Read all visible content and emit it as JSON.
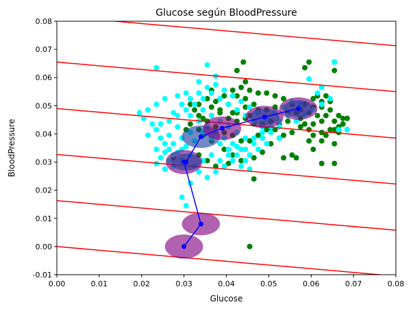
{
  "chart_data": {
    "type": "scatter",
    "title": "Glucose según BloodPressure",
    "xlabel": "Glucose",
    "ylabel": "BloodPressure",
    "xlim": [
      0.0,
      0.08
    ],
    "ylim": [
      -0.01,
      0.08
    ],
    "x_ticks": [
      "0.00",
      "0.01",
      "0.02",
      "0.03",
      "0.04",
      "0.05",
      "0.06",
      "0.07",
      "0.08"
    ],
    "y_ticks": [
      "-0.01",
      "0.00",
      "0.01",
      "0.02",
      "0.03",
      "0.04",
      "0.05",
      "0.06",
      "0.07",
      "0.08"
    ],
    "grid": false,
    "colors": {
      "green_points": "#008000",
      "cyan_points": "#00ffff",
      "lines": "#ff0000",
      "path": "#0000ff",
      "ellipse_purple": "#800080",
      "ellipse_blue": "#1f3f9f"
    },
    "series": [
      {
        "color": "green",
        "points": [
          [
            0.044,
            0.0655
          ],
          [
            0.0595,
            0.0655
          ],
          [
            0.0655,
            0.0655
          ],
          [
            0.0655,
            0.0625
          ],
          [
            0.0585,
            0.0635
          ],
          [
            0.0615,
            0.0535
          ],
          [
            0.0635,
            0.0535
          ],
          [
            0.0645,
            0.0515
          ],
          [
            0.0625,
            0.0495
          ],
          [
            0.0605,
            0.0495
          ],
          [
            0.0595,
            0.0475
          ],
          [
            0.0615,
            0.0465
          ],
          [
            0.0635,
            0.0465
          ],
          [
            0.0665,
            0.0465
          ],
          [
            0.0685,
            0.0455
          ],
          [
            0.0675,
            0.0455
          ],
          [
            0.0655,
            0.0445
          ],
          [
            0.0625,
            0.0445
          ],
          [
            0.0605,
            0.0435
          ],
          [
            0.0585,
            0.0435
          ],
          [
            0.0655,
            0.0415
          ],
          [
            0.0685,
            0.0415
          ],
          [
            0.0665,
            0.0405
          ],
          [
            0.0635,
            0.0395
          ],
          [
            0.0605,
            0.0395
          ],
          [
            0.0595,
            0.0375
          ],
          [
            0.0625,
            0.0375
          ],
          [
            0.0655,
            0.0365
          ],
          [
            0.0605,
            0.0345
          ],
          [
            0.0625,
            0.0295
          ],
          [
            0.0655,
            0.0295
          ],
          [
            0.0535,
            0.0315
          ],
          [
            0.0555,
            0.0325
          ],
          [
            0.0565,
            0.0315
          ],
          [
            0.0515,
            0.0415
          ],
          [
            0.0525,
            0.0435
          ],
          [
            0.0545,
            0.0445
          ],
          [
            0.0565,
            0.0475
          ],
          [
            0.0555,
            0.0505
          ],
          [
            0.0535,
            0.0525
          ],
          [
            0.0515,
            0.0535
          ],
          [
            0.0495,
            0.0545
          ],
          [
            0.0475,
            0.0545
          ],
          [
            0.0455,
            0.0555
          ],
          [
            0.0435,
            0.0565
          ],
          [
            0.0415,
            0.0555
          ],
          [
            0.0395,
            0.0535
          ],
          [
            0.0375,
            0.0515
          ],
          [
            0.0365,
            0.0495
          ],
          [
            0.0385,
            0.0485
          ],
          [
            0.0405,
            0.0505
          ],
          [
            0.0425,
            0.0475
          ],
          [
            0.0445,
            0.0455
          ],
          [
            0.0465,
            0.0435
          ],
          [
            0.0485,
            0.0435
          ],
          [
            0.0505,
            0.0445
          ],
          [
            0.0495,
            0.0415
          ],
          [
            0.0475,
            0.0395
          ],
          [
            0.0455,
            0.0375
          ],
          [
            0.0435,
            0.0375
          ],
          [
            0.0415,
            0.0395
          ],
          [
            0.0395,
            0.0405
          ],
          [
            0.0375,
            0.0425
          ],
          [
            0.0355,
            0.0445
          ],
          [
            0.0345,
            0.0455
          ],
          [
            0.0365,
            0.0465
          ],
          [
            0.0385,
            0.0445
          ],
          [
            0.0325,
            0.0485
          ],
          [
            0.0335,
            0.0465
          ],
          [
            0.0315,
            0.0435
          ],
          [
            0.0305,
            0.0415
          ],
          [
            0.0345,
            0.0395
          ],
          [
            0.0365,
            0.0375
          ],
          [
            0.0395,
            0.0345
          ],
          [
            0.0415,
            0.0325
          ],
          [
            0.0435,
            0.0305
          ],
          [
            0.0465,
            0.0315
          ],
          [
            0.0485,
            0.0335
          ],
          [
            0.0505,
            0.0365
          ],
          [
            0.0525,
            0.0385
          ],
          [
            0.0405,
            0.0295
          ],
          [
            0.0375,
            0.0285
          ],
          [
            0.0355,
            0.0305
          ],
          [
            0.0335,
            0.0325
          ],
          [
            0.0295,
            0.0305
          ],
          [
            0.0275,
            0.0315
          ],
          [
            0.0505,
            0.0415
          ],
          [
            0.0495,
            0.0485
          ],
          [
            0.0465,
            0.0505
          ],
          [
            0.0445,
            0.0525
          ],
          [
            0.0425,
            0.0535
          ],
          [
            0.0445,
            0.0495
          ],
          [
            0.0425,
            0.0445
          ],
          [
            0.0405,
            0.0455
          ],
          [
            0.0385,
            0.0475
          ],
          [
            0.0355,
            0.0425
          ],
          [
            0.0335,
            0.0415
          ],
          [
            0.0455,
            0.0465
          ],
          [
            0.0475,
            0.0485
          ],
          [
            0.0515,
            0.0495
          ],
          [
            0.0545,
            0.0475
          ],
          [
            0.0575,
            0.0455
          ],
          [
            0.0575,
            0.0485
          ],
          [
            0.0585,
            0.0505
          ],
          [
            0.0605,
            0.0525
          ],
          [
            0.0625,
            0.0515
          ],
          [
            0.0645,
            0.0485
          ],
          [
            0.0665,
            0.0425
          ],
          [
            0.0675,
            0.0435
          ],
          [
            0.0645,
            0.0415
          ],
          [
            0.0625,
            0.0405
          ],
          [
            0.0595,
            0.0415
          ],
          [
            0.0575,
            0.0425
          ],
          [
            0.0555,
            0.0405
          ],
          [
            0.0535,
            0.0395
          ],
          [
            0.0455,
            0.0
          ],
          [
            0.0465,
            0.024
          ],
          [
            0.0415,
            0.0475
          ],
          [
            0.0425,
            0.0625
          ],
          [
            0.0445,
            0.0585
          ],
          [
            0.0335,
            0.0505
          ],
          [
            0.0315,
            0.0505
          ],
          [
            0.0355,
            0.0525
          ],
          [
            0.0365,
            0.0555
          ]
        ]
      },
      {
        "color": "cyan",
        "points": [
          [
            0.0235,
            0.0635
          ],
          [
            0.0355,
            0.0645
          ],
          [
            0.0375,
            0.0605
          ],
          [
            0.0335,
            0.0585
          ],
          [
            0.0305,
            0.0545
          ],
          [
            0.0285,
            0.0535
          ],
          [
            0.0255,
            0.0525
          ],
          [
            0.0235,
            0.0505
          ],
          [
            0.0215,
            0.0485
          ],
          [
            0.0195,
            0.0475
          ],
          [
            0.0205,
            0.0455
          ],
          [
            0.0225,
            0.0435
          ],
          [
            0.0235,
            0.0415
          ],
          [
            0.0215,
            0.0395
          ],
          [
            0.0245,
            0.0385
          ],
          [
            0.0255,
            0.0365
          ],
          [
            0.0265,
            0.0345
          ],
          [
            0.0245,
            0.0315
          ],
          [
            0.0235,
            0.0295
          ],
          [
            0.0255,
            0.0275
          ],
          [
            0.0275,
            0.0285
          ],
          [
            0.0295,
            0.0305
          ],
          [
            0.0315,
            0.0325
          ],
          [
            0.0295,
            0.0345
          ],
          [
            0.0275,
            0.0365
          ],
          [
            0.0295,
            0.0385
          ],
          [
            0.0315,
            0.0405
          ],
          [
            0.0285,
            0.0425
          ],
          [
            0.0265,
            0.0445
          ],
          [
            0.0285,
            0.0465
          ],
          [
            0.0305,
            0.0485
          ],
          [
            0.0325,
            0.0505
          ],
          [
            0.0345,
            0.0525
          ],
          [
            0.0365,
            0.0545
          ],
          [
            0.0385,
            0.0525
          ],
          [
            0.0405,
            0.0505
          ],
          [
            0.0425,
            0.0485
          ],
          [
            0.0445,
            0.0465
          ],
          [
            0.0465,
            0.0445
          ],
          [
            0.0485,
            0.0425
          ],
          [
            0.0505,
            0.0405
          ],
          [
            0.0525,
            0.0385
          ],
          [
            0.0495,
            0.0365
          ],
          [
            0.0475,
            0.0345
          ],
          [
            0.0455,
            0.0325
          ],
          [
            0.0435,
            0.0345
          ],
          [
            0.0415,
            0.0365
          ],
          [
            0.0395,
            0.0385
          ],
          [
            0.0375,
            0.0405
          ],
          [
            0.0355,
            0.0425
          ],
          [
            0.0335,
            0.0445
          ],
          [
            0.0315,
            0.0465
          ],
          [
            0.0345,
            0.0485
          ],
          [
            0.0365,
            0.0465
          ],
          [
            0.0385,
            0.0445
          ],
          [
            0.0405,
            0.0425
          ],
          [
            0.0425,
            0.0405
          ],
          [
            0.0445,
            0.0385
          ],
          [
            0.0465,
            0.0365
          ],
          [
            0.0485,
            0.0385
          ],
          [
            0.0505,
            0.0425
          ],
          [
            0.0525,
            0.0445
          ],
          [
            0.0545,
            0.0465
          ],
          [
            0.0565,
            0.0445
          ],
          [
            0.0585,
            0.0465
          ],
          [
            0.0605,
            0.0485
          ],
          [
            0.0625,
            0.0505
          ],
          [
            0.0645,
            0.0525
          ],
          [
            0.0615,
            0.0545
          ],
          [
            0.0625,
            0.0565
          ],
          [
            0.0655,
            0.0655
          ],
          [
            0.0595,
            0.0595
          ],
          [
            0.0685,
            0.0415
          ],
          [
            0.0665,
            0.0415
          ],
          [
            0.0315,
            0.0225
          ],
          [
            0.0295,
            0.0175
          ],
          [
            0.0305,
            0.0145
          ],
          [
            0.0335,
            0.0265
          ],
          [
            0.0355,
            0.0245
          ],
          [
            0.0375,
            0.0265
          ],
          [
            0.0395,
            0.0285
          ],
          [
            0.0415,
            0.0305
          ],
          [
            0.0435,
            0.0285
          ],
          [
            0.0455,
            0.0275
          ],
          [
            0.0255,
            0.0335
          ],
          [
            0.0275,
            0.0325
          ],
          [
            0.0235,
            0.0345
          ],
          [
            0.0265,
            0.0395
          ],
          [
            0.0245,
            0.0435
          ],
          [
            0.0275,
            0.0475
          ],
          [
            0.0295,
            0.0505
          ],
          [
            0.0315,
            0.0525
          ],
          [
            0.0335,
            0.0545
          ],
          [
            0.0355,
            0.0565
          ],
          [
            0.0375,
            0.0575
          ],
          [
            0.0395,
            0.0555
          ],
          [
            0.0415,
            0.0535
          ],
          [
            0.0435,
            0.0515
          ],
          [
            0.0455,
            0.0495
          ],
          [
            0.0475,
            0.0475
          ],
          [
            0.0495,
            0.0455
          ],
          [
            0.0515,
            0.0475
          ],
          [
            0.0535,
            0.0495
          ],
          [
            0.0555,
            0.0515
          ],
          [
            0.0575,
            0.0505
          ],
          [
            0.0345,
            0.0405
          ],
          [
            0.0365,
            0.0385
          ],
          [
            0.0385,
            0.0365
          ],
          [
            0.0405,
            0.0345
          ],
          [
            0.0425,
            0.0325
          ],
          [
            0.0445,
            0.0305
          ],
          [
            0.0325,
            0.0375
          ],
          [
            0.0305,
            0.0355
          ],
          [
            0.0285,
            0.0335
          ],
          [
            0.0265,
            0.0305
          ],
          [
            0.0325,
            0.0285
          ],
          [
            0.0345,
            0.0305
          ],
          [
            0.0365,
            0.0325
          ],
          [
            0.0385,
            0.0305
          ],
          [
            0.0405,
            0.0325
          ],
          [
            0.0425,
            0.0355
          ],
          [
            0.0445,
            0.0345
          ],
          [
            0.0465,
            0.0385
          ],
          [
            0.0485,
            0.0405
          ],
          [
            0.0525,
            0.0425
          ]
        ]
      }
    ],
    "lines": [
      {
        "x": [
          0.0,
          0.08
        ],
        "y": [
          0.0,
          -0.0105
        ]
      },
      {
        "x": [
          0.0,
          0.08
        ],
        "y": [
          0.0163,
          0.0058
        ]
      },
      {
        "x": [
          0.0,
          0.08
        ],
        "y": [
          0.0327,
          0.0222
        ]
      },
      {
        "x": [
          0.0,
          0.08
        ],
        "y": [
          0.049,
          0.0385
        ]
      },
      {
        "x": [
          0.0,
          0.08
        ],
        "y": [
          0.0655,
          0.055
        ]
      },
      {
        "x": [
          0.0,
          0.08
        ],
        "y": [
          0.0818,
          0.0713
        ]
      }
    ],
    "path": {
      "x": [
        0.03,
        0.034,
        0.03,
        0.0305,
        0.034,
        0.039,
        0.049,
        0.057
      ],
      "y": [
        0.0,
        0.008,
        0.03,
        0.03,
        0.039,
        0.042,
        0.046,
        0.049
      ]
    },
    "ellipses": [
      {
        "cx": 0.03,
        "cy": 0.0,
        "rx": 0.0045,
        "ry": 0.0043,
        "color": "purple"
      },
      {
        "cx": 0.034,
        "cy": 0.008,
        "rx": 0.0045,
        "ry": 0.004,
        "color": "purple"
      },
      {
        "cx": 0.03,
        "cy": 0.03,
        "rx": 0.0043,
        "ry": 0.0043,
        "color": "purple"
      },
      {
        "cx": 0.0305,
        "cy": 0.03,
        "rx": 0.0035,
        "ry": 0.003,
        "color": "blue"
      },
      {
        "cx": 0.034,
        "cy": 0.039,
        "rx": 0.0045,
        "ry": 0.004,
        "color": "blue"
      },
      {
        "cx": 0.039,
        "cy": 0.042,
        "rx": 0.0045,
        "ry": 0.0042,
        "color": "purple"
      },
      {
        "cx": 0.049,
        "cy": 0.046,
        "rx": 0.0045,
        "ry": 0.004,
        "color": "purple"
      },
      {
        "cx": 0.049,
        "cy": 0.046,
        "rx": 0.0035,
        "ry": 0.003,
        "color": "blue"
      },
      {
        "cx": 0.057,
        "cy": 0.049,
        "rx": 0.0045,
        "ry": 0.004,
        "color": "purple"
      },
      {
        "cx": 0.057,
        "cy": 0.049,
        "rx": 0.0035,
        "ry": 0.003,
        "color": "blue"
      }
    ]
  }
}
